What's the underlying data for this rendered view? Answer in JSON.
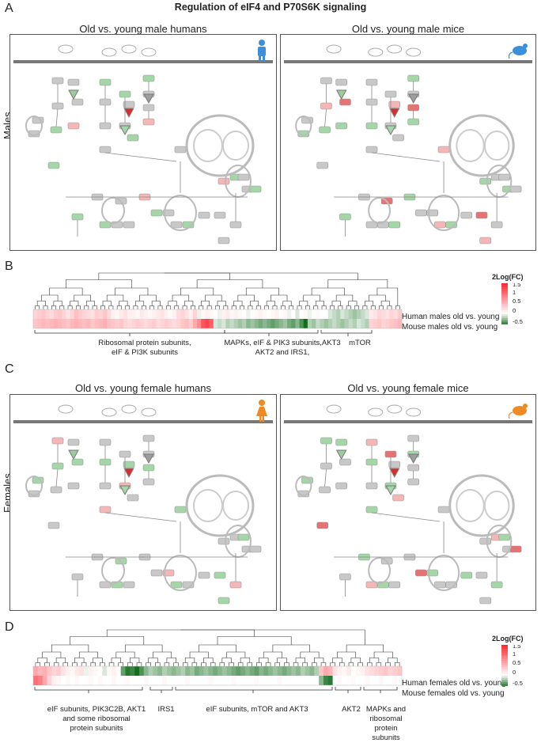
{
  "title": "Regulation of eIF4 and P70S6K signaling",
  "section_A": {
    "letter": "A",
    "side_label": "Males",
    "left_title": "Old vs. young male humans",
    "right_title": "Old vs. young male mice",
    "left_icon": "human-male-icon",
    "right_icon": "mouse-icon",
    "icon_color_human": "#3b8fdc",
    "icon_color_mouse": "#3b8fdc"
  },
  "section_B": {
    "letter": "B",
    "legend_title": "2Log(FC)",
    "ticks": [
      "1.5",
      "1",
      "0.5",
      "0",
      "-0.5"
    ],
    "row_labels": [
      "Human males old vs. young",
      "Mouse males old vs. young"
    ],
    "groups": [
      {
        "label1": "Ribosomal protein subunits,",
        "label2": "eIF & PI3K subunits"
      },
      {
        "label1": "MAPKs, eIF & PIK3 subunits,AKT3",
        "label2": "AKT2 and IRS1,"
      },
      {
        "label1": "mTOR",
        "label2": ""
      }
    ]
  },
  "section_C": {
    "letter": "C",
    "side_label": "Females",
    "left_title": "Old vs. young female humans",
    "right_title": "Old vs. young female mice",
    "left_icon": "human-female-icon",
    "right_icon": "mouse-icon",
    "icon_color_human": "#f08a24",
    "icon_color_mouse": "#f08a24"
  },
  "section_D": {
    "letter": "D",
    "legend_title": "2Log(FC)",
    "ticks": [
      "1.5",
      "1",
      "0.5",
      "0",
      "-0.5"
    ],
    "row_labels": [
      "Human females old vs. young",
      "Mouse females old vs. young"
    ],
    "groups": [
      {
        "lines": [
          "eIF subunits, PIK3C2B, AKT1",
          "and some ribosomal",
          "protein subunits"
        ]
      },
      {
        "lines": [
          "IRS1"
        ]
      },
      {
        "lines": [
          "eIF subunits, mTOR and AKT3"
        ]
      },
      {
        "lines": [
          "AKT2"
        ]
      },
      {
        "lines": [
          "MAPKs and",
          "ribosomal",
          "protein",
          "subunits"
        ]
      }
    ]
  },
  "colors": {
    "up": "#e8383d",
    "down": "#2e7d32",
    "membrane": "#777777",
    "node": "#c8c8c8"
  },
  "heatmap_B": {
    "human": [
      0.3,
      0.35,
      0.4,
      0.3,
      0.25,
      0.35,
      0.4,
      0.3,
      0.2,
      0.3,
      0.45,
      0.35,
      0.3,
      0.25,
      0.2,
      0.35,
      0.3,
      0.4,
      0.25,
      0.1,
      0.05,
      0.15,
      0.2,
      0.1,
      0.1,
      0.05,
      0.15,
      0.1,
      0.05,
      0.1,
      0.15,
      0.2,
      0.1,
      0.05,
      0.1,
      0.25,
      0.3,
      0.2,
      0.1,
      0.3,
      -0.05,
      0.05,
      0.1,
      0.05,
      0.0,
      -0.05,
      0.1,
      0.15,
      0.05,
      0.1,
      0.05,
      0.0,
      -0.05,
      0.0,
      0.05,
      0.1,
      0.05,
      0.0,
      0.05,
      0.1,
      0.0,
      0.05,
      -0.05,
      0.0,
      -0.1,
      0.0,
      0.05,
      -0.05,
      0.0,
      0.05,
      0.0,
      0.0,
      -0.1,
      -0.15,
      -0.2,
      -0.1,
      -0.15,
      -0.2,
      -0.25,
      -0.2,
      -0.15,
      -0.1,
      0.15,
      0.2,
      0.3,
      0.25,
      0.2,
      0.3,
      0.25,
      0.35
    ],
    "mouse": [
      0.4,
      0.45,
      0.5,
      0.45,
      0.5,
      0.55,
      0.5,
      0.45,
      0.4,
      0.5,
      0.55,
      0.5,
      0.45,
      0.5,
      0.4,
      0.45,
      0.5,
      0.55,
      0.45,
      0.4,
      0.35,
      0.4,
      0.3,
      0.25,
      0.3,
      0.35,
      0.3,
      0.25,
      0.3,
      0.35,
      0.25,
      0.3,
      0.35,
      0.3,
      0.25,
      0.3,
      0.4,
      0.45,
      0.35,
      0.6,
      0.8,
      1.2,
      1.3,
      1.1,
      -0.1,
      -0.15,
      -0.1,
      -0.2,
      -0.15,
      -0.2,
      -0.25,
      -0.2,
      -0.3,
      -0.25,
      -0.3,
      -0.35,
      -0.3,
      -0.35,
      -0.4,
      -0.35,
      -0.3,
      -0.25,
      -0.35,
      -0.4,
      -0.3,
      -0.45,
      -0.6,
      -0.2,
      -0.25,
      -0.15,
      -0.2,
      -0.25,
      -0.2,
      -0.15,
      -0.2,
      -0.25,
      -0.2,
      -0.15,
      -0.2,
      -0.1,
      -0.15,
      -0.2,
      0.3,
      0.35,
      0.4,
      0.3,
      0.35,
      0.4,
      0.45,
      0.5
    ]
  },
  "heatmap_D": {
    "human": [
      0.6,
      0.5,
      0.55,
      0.4,
      0.3,
      0.35,
      0.2,
      0.1,
      0.05,
      0.15,
      0.2,
      -0.05,
      0.1,
      0.05,
      0.0,
      -0.1,
      0.05,
      0.1,
      0.0,
      -0.4,
      -0.55,
      -0.5,
      -0.6,
      -0.45,
      -0.3,
      -0.2,
      -0.25,
      -0.3,
      -0.2,
      -0.25,
      -0.3,
      -0.25,
      -0.2,
      -0.3,
      -0.25,
      -0.35,
      -0.3,
      -0.25,
      -0.3,
      -0.35,
      -0.3,
      -0.25,
      -0.3,
      -0.35,
      -0.4,
      -0.35,
      -0.3,
      -0.35,
      -0.4,
      -0.3,
      -0.35,
      -0.3,
      -0.25,
      -0.3,
      -0.35,
      -0.3,
      -0.25,
      -0.3,
      -0.2,
      -0.25,
      -0.3,
      -0.2,
      0.4,
      0.6,
      0.5,
      0.2,
      0.1,
      0.05,
      0.15,
      0.0,
      0.05,
      0.1,
      0.2,
      0.25,
      0.3,
      0.35,
      0.4,
      0.3,
      0.35,
      0.4
    ],
    "mouse": [
      1.0,
      0.9,
      0.6,
      0.3,
      0.1,
      0.05,
      0.0,
      0.05,
      0.0,
      0.05,
      0.0,
      0.0,
      0.05,
      0.0,
      0.05,
      0.0,
      0.0,
      0.05,
      0.0,
      0.0,
      0.05,
      0.0,
      0.0,
      0.0,
      0.05,
      0.0,
      0.0,
      0.0,
      0.05,
      0.0,
      0.0,
      0.0,
      0.0,
      0.05,
      0.0,
      0.0,
      0.0,
      0.0,
      0.05,
      0.0,
      0.0,
      0.0,
      0.0,
      0.05,
      0.0,
      0.0,
      0.0,
      0.0,
      0.05,
      0.0,
      0.0,
      0.0,
      0.0,
      0.05,
      0.0,
      0.0,
      0.0,
      0.0,
      0.0,
      0.0,
      0.0,
      0.0,
      -0.3,
      -0.5,
      -0.55,
      0.0,
      0.05,
      0.0,
      0.0,
      0.05,
      0.0,
      0.0,
      0.05,
      0.0,
      0.0,
      0.05,
      0.0,
      0.0,
      0.05,
      0.0
    ]
  }
}
